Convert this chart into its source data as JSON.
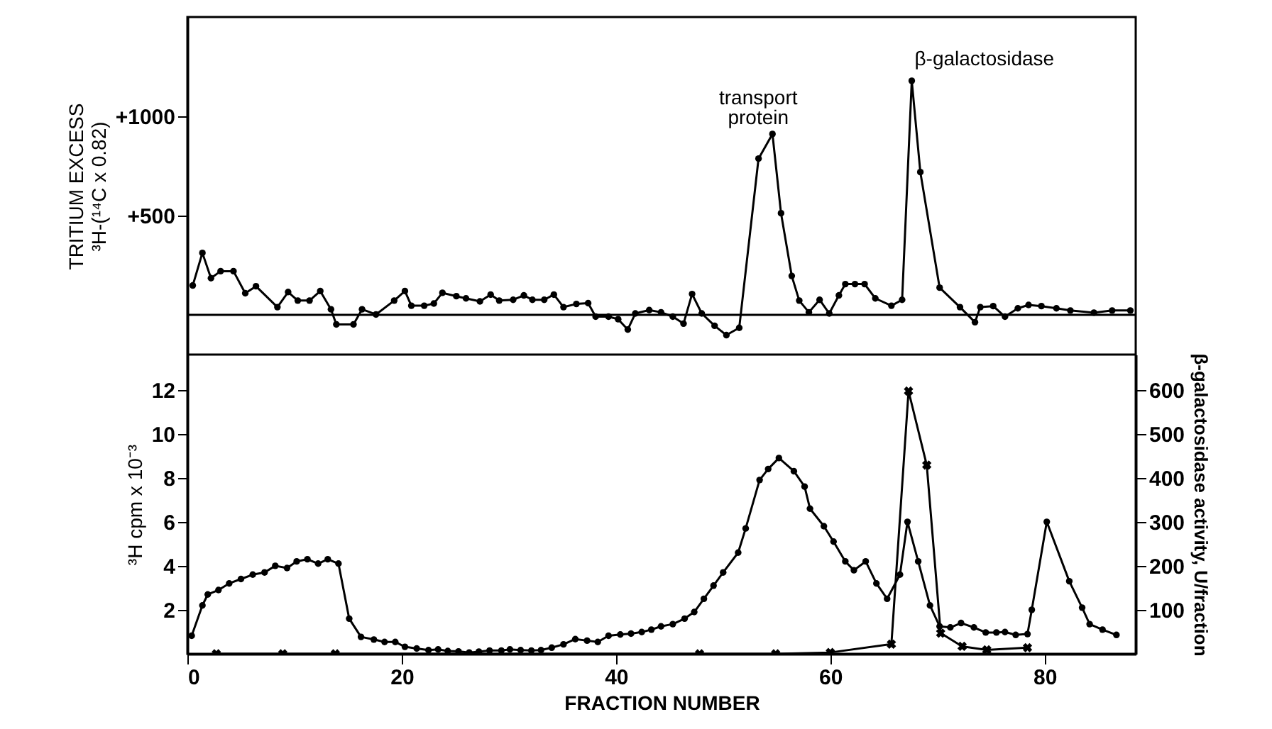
{
  "chart_data": [
    {
      "type": "line",
      "ylabel": "TRITIUM EXCESS\n³H-(¹⁴C x 0.82)",
      "xlim": [
        0,
        88.5
      ],
      "ylim": [
        -200,
        1500
      ],
      "yticks": [
        {
          "value": 500,
          "label": "+500"
        },
        {
          "value": 1000,
          "label": "+1000"
        }
      ],
      "tick_labels": "y",
      "marker": "circle",
      "color": "#000000",
      "ref_lines": [
        {
          "axis": "y",
          "value": 0,
          "color": "#000000"
        }
      ],
      "annotations": [
        {
          "text": "transport protein",
          "x": 54.6,
          "y": 911
        },
        {
          "text": "β-galactosidase",
          "x": 67.6,
          "y": 1179
        }
      ],
      "x": [
        0.5,
        1.4,
        2.2,
        3.1,
        4.3,
        5.4,
        6.4,
        8.4,
        9.4,
        10.3,
        11.4,
        12.4,
        13.4,
        13.9,
        15.5,
        16.3,
        17.6,
        19.3,
        20.3,
        20.9,
        22.1,
        23.0,
        23.8,
        25.1,
        26.0,
        27.3,
        28.3,
        29.1,
        30.4,
        31.4,
        32.2,
        33.3,
        34.2,
        35.1,
        36.3,
        37.4,
        38.1,
        39.3,
        40.2,
        41.1,
        41.8,
        43.1,
        44.2,
        45.3,
        46.3,
        47.1,
        48.0,
        49.2,
        50.3,
        51.5,
        53.3,
        54.6,
        55.4,
        56.4,
        57.1,
        58.0,
        59.0,
        59.9,
        60.8,
        61.4,
        62.3,
        63.2,
        64.2,
        65.7,
        66.7,
        67.6,
        68.4,
        70.2,
        72.1,
        73.5,
        74.0,
        75.2,
        76.3,
        77.5,
        78.5,
        79.7,
        81.1,
        82.4,
        84.6,
        86.3,
        88.0
      ],
      "values": [
        148,
        312,
        185,
        220,
        220,
        109,
        144,
        39,
        115,
        72,
        72,
        120,
        28,
        -48,
        -48,
        28,
        2,
        72,
        120,
        46,
        46,
        57,
        111,
        94,
        83,
        68,
        102,
        72,
        76,
        98,
        76,
        76,
        102,
        39,
        55,
        59,
        -9,
        -9,
        -22,
        -74,
        7,
        24,
        13,
        -9,
        -44,
        105,
        7,
        -55,
        -102,
        -65,
        787,
        911,
        512,
        196,
        72,
        13,
        76,
        7,
        98,
        155,
        155,
        155,
        83,
        46,
        76,
        1179,
        719,
        137,
        39,
        -37,
        39,
        44,
        -9,
        33,
        50,
        44,
        33,
        22,
        11,
        22,
        22
      ]
    },
    {
      "type": "line",
      "xlabel": "FRACTION  NUMBER",
      "ylabel": "³H cpm x 10⁻³",
      "y2label": "β-galactosidase activity, U/fraction",
      "xlim": [
        0,
        88.5
      ],
      "xticks": [
        0,
        20,
        40,
        60,
        80
      ],
      "ylim": [
        0,
        13.6
      ],
      "yticks": [
        2,
        4,
        6,
        8,
        10,
        12
      ],
      "y2lim": [
        0,
        680
      ],
      "y2ticks": [
        100,
        200,
        300,
        400,
        500,
        600
      ],
      "series": [
        {
          "color": "#000000",
          "marker": "circle",
          "x": [
            0.4,
            1.4,
            1.9,
            2.9,
            3.9,
            5.0,
            6.1,
            7.2,
            8.2,
            9.3,
            10.2,
            11.2,
            12.2,
            13.1,
            14.1,
            15.1,
            16.2,
            17.4,
            18.4,
            19.4,
            20.3,
            21.4,
            22.5,
            23.4,
            24.3,
            25.3,
            26.3,
            27.2,
            28.2,
            29.3,
            30.1,
            31.1,
            32.1,
            33.0,
            34.0,
            35.1,
            36.2,
            37.3,
            38.3,
            39.3,
            40.4,
            41.4,
            42.4,
            43.3,
            44.2,
            45.3,
            46.4,
            47.3,
            48.2,
            49.1,
            50.0,
            51.4,
            52.1,
            53.4,
            54.2,
            55.2,
            56.6,
            57.6,
            58.1,
            59.4,
            60.3,
            61.4,
            62.2,
            63.3,
            64.3,
            65.3,
            66.5,
            67.2,
            68.2,
            69.3,
            70.2,
            71.2,
            72.2,
            73.4,
            74.5,
            75.5,
            76.3,
            77.3,
            78.4,
            78.8,
            80.2,
            82.3,
            83.5,
            84.2,
            85.4,
            86.7
          ],
          "values": [
            0.82,
            2.2,
            2.7,
            2.9,
            3.2,
            3.4,
            3.6,
            3.7,
            4.0,
            3.9,
            4.2,
            4.3,
            4.1,
            4.3,
            4.1,
            1.6,
            0.77,
            0.65,
            0.54,
            0.54,
            0.32,
            0.24,
            0.17,
            0.2,
            0.13,
            0.11,
            0.06,
            0.1,
            0.15,
            0.15,
            0.2,
            0.17,
            0.15,
            0.17,
            0.28,
            0.43,
            0.67,
            0.6,
            0.54,
            0.82,
            0.88,
            0.92,
            0.99,
            1.1,
            1.25,
            1.35,
            1.6,
            1.9,
            2.5,
            3.1,
            3.7,
            4.6,
            5.7,
            7.9,
            8.4,
            8.9,
            8.3,
            7.6,
            6.6,
            5.8,
            5.1,
            4.2,
            3.8,
            4.2,
            3.2,
            2.5,
            3.6,
            6.0,
            4.2,
            2.2,
            1.25,
            1.2,
            1.4,
            1.2,
            0.97,
            0.97,
            0.99,
            0.86,
            0.9,
            2.0,
            6.0,
            3.3,
            2.1,
            1.35,
            1.1,
            0.86
          ]
        },
        {
          "color": "#000000",
          "marker": "cross",
          "axis": "y2",
          "x": [
            2.7,
            8.9,
            13.8,
            47.8,
            54.9,
            60.0,
            65.7,
            67.3,
            69.0,
            70.3,
            72.3,
            74.6,
            78.4
          ],
          "values": [
            0,
            0,
            0,
            0,
            0,
            3,
            22,
            597,
            429,
            47,
            17,
            9,
            14
          ]
        }
      ]
    }
  ]
}
